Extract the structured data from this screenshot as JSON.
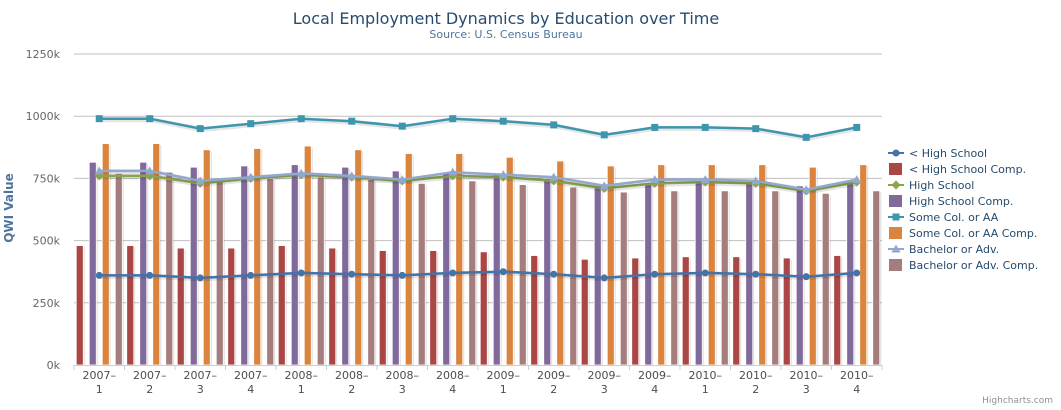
{
  "chart_data": {
    "type": "bar",
    "title": "Local Employment Dynamics by Education over Time",
    "subtitle": "Source: U.S. Census Bureau",
    "ylabel": "QWI Value",
    "xlabel": "",
    "ylim": [
      0,
      1250000
    ],
    "y_ticks": [
      0,
      250000,
      500000,
      750000,
      1000000,
      1250000
    ],
    "y_tick_labels": [
      "0k",
      "250k",
      "500k",
      "750k",
      "1000k",
      "1250k"
    ],
    "grid": true,
    "legend_position": "right",
    "categories": [
      "2007–1",
      "2007–2",
      "2007–3",
      "2007–4",
      "2008–1",
      "2008–2",
      "2008–3",
      "2008–4",
      "2009–1",
      "2009–2",
      "2009–3",
      "2009–4",
      "2010–1",
      "2010–2",
      "2010–3",
      "2010–4"
    ],
    "series": [
      {
        "name": "< High School",
        "kind": "line",
        "marker": "circle",
        "color": "#4572A7",
        "values": [
          360000,
          360000,
          350000,
          360000,
          370000,
          365000,
          360000,
          370000,
          375000,
          365000,
          350000,
          365000,
          370000,
          365000,
          355000,
          370000
        ]
      },
      {
        "name": "< High School Comp.",
        "kind": "bar",
        "color": "#AA4643",
        "values": [
          480000,
          480000,
          470000,
          470000,
          480000,
          470000,
          460000,
          460000,
          455000,
          440000,
          425000,
          430000,
          435000,
          435000,
          430000,
          440000
        ]
      },
      {
        "name": "High School",
        "kind": "line",
        "marker": "diamond",
        "color": "#89A54E",
        "values": [
          760000,
          760000,
          730000,
          750000,
          765000,
          755000,
          740000,
          760000,
          755000,
          740000,
          710000,
          730000,
          735000,
          730000,
          700000,
          735000
        ]
      },
      {
        "name": "High School Comp.",
        "kind": "bar",
        "color": "#80699B",
        "values": [
          815000,
          815000,
          795000,
          800000,
          805000,
          795000,
          780000,
          770000,
          765000,
          750000,
          720000,
          730000,
          735000,
          730000,
          720000,
          730000
        ]
      },
      {
        "name": "Some Col. or AA",
        "kind": "line",
        "marker": "square",
        "color": "#3D96AE",
        "values": [
          990000,
          990000,
          950000,
          970000,
          990000,
          980000,
          960000,
          990000,
          980000,
          965000,
          925000,
          955000,
          955000,
          950000,
          915000,
          955000
        ]
      },
      {
        "name": "Some Col. or AA Comp.",
        "kind": "bar",
        "color": "#DB843D",
        "values": [
          890000,
          890000,
          865000,
          870000,
          880000,
          865000,
          850000,
          850000,
          835000,
          820000,
          800000,
          805000,
          805000,
          805000,
          795000,
          805000
        ]
      },
      {
        "name": "Bachelor or Adv.",
        "kind": "line",
        "marker": "triangle",
        "color": "#92A8CD",
        "values": [
          780000,
          780000,
          740000,
          755000,
          770000,
          760000,
          745000,
          775000,
          765000,
          755000,
          720000,
          745000,
          745000,
          740000,
          705000,
          745000
        ]
      },
      {
        "name": "Bachelor or Adv. Comp.",
        "kind": "bar",
        "color": "#A47D7C",
        "values": [
          770000,
          775000,
          745000,
          750000,
          755000,
          745000,
          730000,
          740000,
          725000,
          715000,
          695000,
          700000,
          700000,
          700000,
          690000,
          700000
        ]
      }
    ]
  },
  "credits": "Highcharts.com"
}
